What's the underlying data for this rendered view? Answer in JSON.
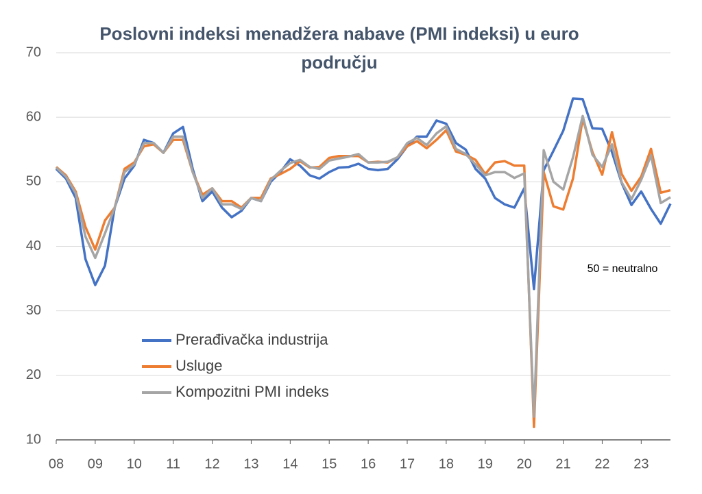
{
  "chart_data": {
    "type": "line",
    "title": "Poslovni indeksi menadžera nabave (PMI indeksi) u euro području",
    "annotation": "50 = neutralno",
    "x": [
      8,
      8.25,
      8.5,
      8.75,
      9,
      9.25,
      9.5,
      9.75,
      10,
      10.25,
      10.5,
      10.75,
      11,
      11.25,
      11.5,
      11.75,
      12,
      12.25,
      12.5,
      12.75,
      13,
      13.25,
      13.5,
      13.75,
      14,
      14.25,
      14.5,
      14.75,
      15,
      15.25,
      15.5,
      15.75,
      16,
      16.25,
      16.5,
      16.75,
      17,
      17.25,
      17.5,
      17.75,
      18,
      18.25,
      18.5,
      18.75,
      19,
      19.25,
      19.5,
      19.75,
      20,
      20.25,
      20.5,
      20.75,
      21,
      21.25,
      21.5,
      21.75,
      22,
      22.25,
      22.5,
      22.75,
      23,
      23.25,
      23.5,
      23.75
    ],
    "series": [
      {
        "name": "Prerađivačka industrija",
        "color": "#4472c4",
        "values": [
          52,
          50.5,
          47.5,
          38,
          34,
          37,
          46,
          50.5,
          52.5,
          56.5,
          56,
          54.5,
          57.5,
          58.5,
          52,
          47,
          48.5,
          46,
          44.5,
          45.5,
          47.5,
          47,
          50,
          51.5,
          53.5,
          52.5,
          51,
          50.5,
          51.5,
          52.2,
          52.3,
          52.8,
          52,
          51.8,
          52,
          53.5,
          55.5,
          57,
          57,
          59.5,
          59,
          56,
          55,
          52,
          50.5,
          47.5,
          46.5,
          46,
          49,
          33.4,
          51.8,
          54.8,
          57.9,
          62.9,
          62.8,
          58.3,
          58.2,
          54.6,
          49.8,
          46.4,
          48.5,
          45.8,
          43.5,
          46.6
        ]
      },
      {
        "name": "Usluge",
        "color": "#ed7d31",
        "values": [
          52.3,
          51,
          48.5,
          43,
          39.5,
          44,
          46,
          52,
          53,
          55.5,
          55.8,
          54.5,
          56.5,
          56.5,
          51.5,
          48,
          49,
          47,
          47,
          46,
          47.5,
          47.5,
          50.5,
          51.2,
          52,
          53.2,
          52.2,
          52.3,
          53.7,
          54,
          54,
          54,
          53,
          53.1,
          53,
          53.8,
          55.5,
          56.3,
          55.2,
          56.5,
          58,
          54.7,
          54.2,
          53.4,
          51.2,
          53,
          53.2,
          52.5,
          52.5,
          12,
          51.5,
          46.2,
          45.7,
          50.5,
          59.8,
          54.6,
          51.1,
          57.7,
          51.2,
          48.6,
          50.8,
          55.1,
          48.3,
          48.7
        ]
      },
      {
        "name": "Kompozitni PMI indeks",
        "color": "#a5a5a5",
        "values": [
          52.2,
          50.8,
          48.2,
          41.5,
          38.2,
          42,
          46,
          51.5,
          52.7,
          56,
          56,
          54.5,
          57,
          57,
          51.5,
          47.5,
          49,
          46.5,
          46.5,
          45.8,
          47.5,
          47,
          50.3,
          51.7,
          52.9,
          53.4,
          52.3,
          52,
          53.3,
          53.6,
          53.9,
          54.3,
          53,
          53,
          53.1,
          53.8,
          56,
          56.8,
          55.7,
          57.5,
          58.6,
          55.1,
          54.3,
          52.7,
          51,
          51.5,
          51.5,
          50.6,
          51.3,
          13.6,
          54.9,
          50,
          48.8,
          53.8,
          60.2,
          54.2,
          52.3,
          55.8,
          49.9,
          47.3,
          50.3,
          54.1,
          46.7,
          47.6
        ]
      }
    ],
    "xlim": [
      8,
      23.75
    ],
    "xticks": [
      {
        "value": 8,
        "label": "08"
      },
      {
        "value": 9,
        "label": "09"
      },
      10,
      11,
      12,
      13,
      14,
      15,
      16,
      17,
      18,
      19,
      20,
      21,
      22,
      23
    ],
    "ylim": [
      10,
      70
    ],
    "yticks": [
      10,
      20,
      30,
      40,
      50,
      60,
      70
    ],
    "grid": true
  }
}
